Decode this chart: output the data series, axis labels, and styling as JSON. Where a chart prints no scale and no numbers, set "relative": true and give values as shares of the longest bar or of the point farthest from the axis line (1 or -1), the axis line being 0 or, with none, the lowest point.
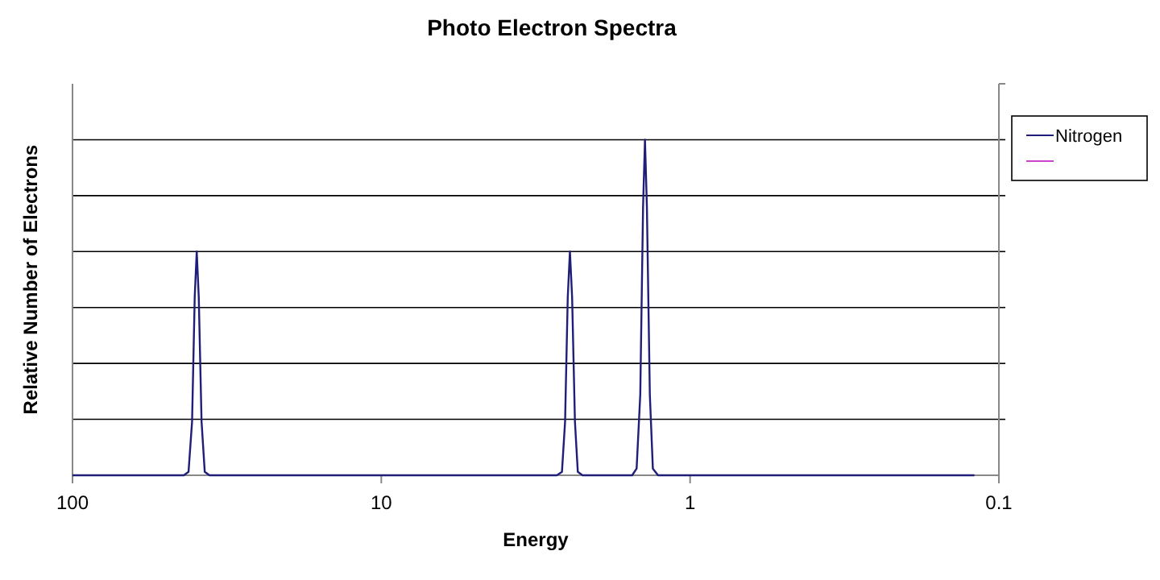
{
  "chart_data": {
    "type": "line",
    "title": "Photo Electron Spectra",
    "xlabel": "Energy",
    "ylabel": "Relative Number of Electrons",
    "x": [
      100,
      43.6,
      42.1,
      41.0,
      40.2,
      39.6,
      39.0,
      38.2,
      37.3,
      36.0,
      2.7,
      2.6,
      2.54,
      2.49,
      2.45,
      2.41,
      2.36,
      2.31,
      2.23,
      1.54,
      1.49,
      1.45,
      1.42,
      1.4,
      1.38,
      1.35,
      1.32,
      1.27,
      0.12
    ],
    "series": [
      {
        "name": "Nitrogen",
        "color": "#1f1f7a",
        "values": [
          0,
          0,
          0.01,
          0.16,
          0.53,
          0.667,
          0.53,
          0.16,
          0.01,
          0,
          0,
          0.01,
          0.16,
          0.53,
          0.667,
          0.53,
          0.16,
          0.01,
          0,
          0,
          0.02,
          0.24,
          0.8,
          1,
          0.8,
          0.24,
          0.02,
          0,
          0
        ]
      },
      {
        "color": "#cc44cc",
        "values": [
          null,
          null,
          null,
          null,
          null,
          null,
          null,
          null,
          null,
          null,
          null,
          null,
          null,
          null,
          null,
          null,
          null,
          null,
          null,
          null,
          null,
          null,
          null,
          null,
          null,
          null,
          null,
          null,
          null
        ]
      }
    ],
    "relative": true,
    "log": "x",
    "xlim": [
      100,
      0.1
    ],
    "xticks": [
      100,
      10,
      1,
      0.1
    ],
    "grid": "y",
    "legend": "right",
    "marker": "none",
    "line_style": "solid"
  }
}
